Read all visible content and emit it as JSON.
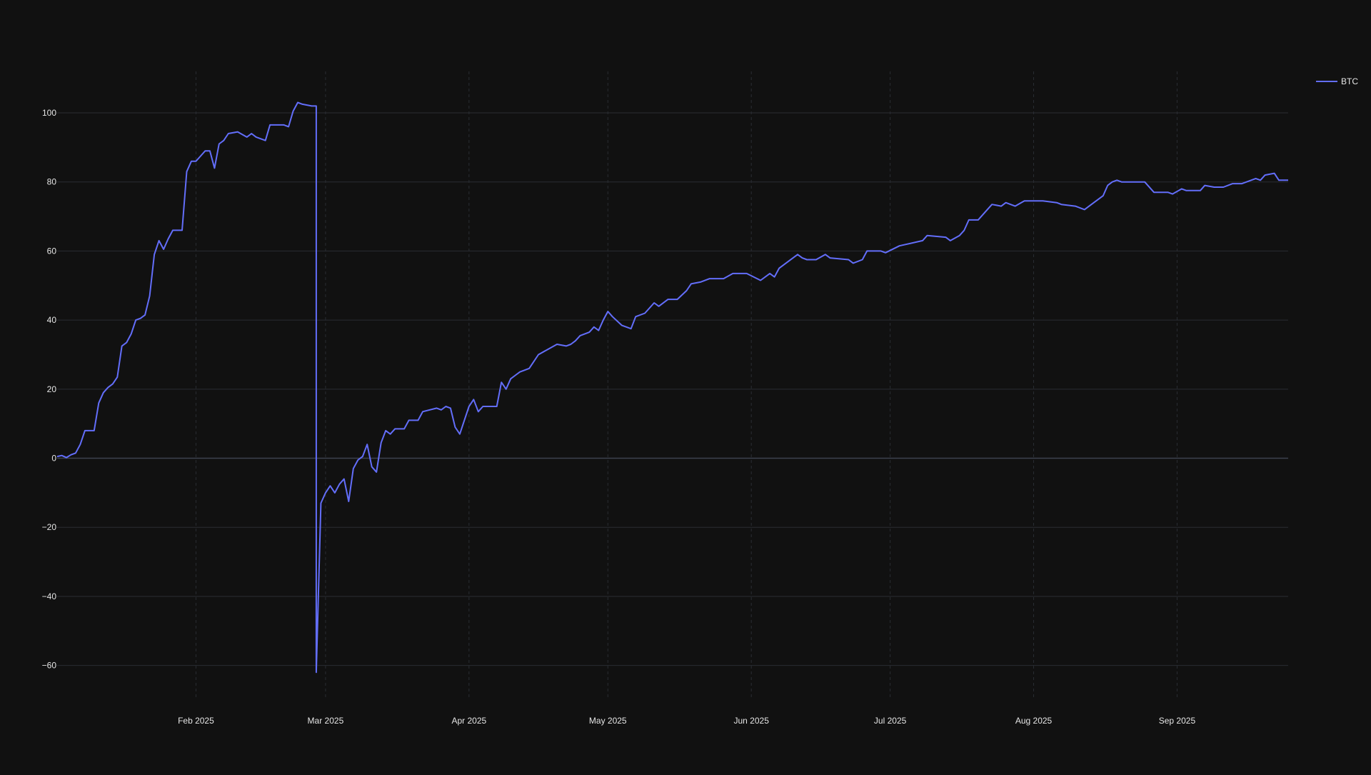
{
  "chart_data": {
    "type": "line",
    "title": "",
    "xlabel": "",
    "ylabel": "",
    "theme": {
      "background": "#111111",
      "grid_color": "#2a2d33",
      "zero_line_color": "#3c4250",
      "tick_color": "#e6e6e6"
    },
    "x_axis": {
      "type": "date",
      "range": [
        "2025-01-02",
        "2025-09-25"
      ],
      "grid": true,
      "grid_style": "dashed",
      "ticks": [
        {
          "date": "2025-02-01",
          "label": "Feb 2025"
        },
        {
          "date": "2025-03-01",
          "label": "Mar 2025"
        },
        {
          "date": "2025-04-01",
          "label": "Apr 2025"
        },
        {
          "date": "2025-05-01",
          "label": "May 2025"
        },
        {
          "date": "2025-06-01",
          "label": "Jun 2025"
        },
        {
          "date": "2025-07-01",
          "label": "Jul 2025"
        },
        {
          "date": "2025-08-01",
          "label": "Aug 2025"
        },
        {
          "date": "2025-09-01",
          "label": "Sep 2025"
        }
      ]
    },
    "y_axis": {
      "range": [
        -70,
        112
      ],
      "grid": true,
      "ticks": [
        {
          "value": 100,
          "label": "100"
        },
        {
          "value": 80,
          "label": "80"
        },
        {
          "value": 60,
          "label": "60"
        },
        {
          "value": 40,
          "label": "40"
        },
        {
          "value": 20,
          "label": "20"
        },
        {
          "value": 0,
          "label": "0"
        },
        {
          "value": -20,
          "label": "−20"
        },
        {
          "value": -40,
          "label": "−40"
        },
        {
          "value": -60,
          "label": "−60"
        }
      ]
    },
    "legend": {
      "position": "top-right"
    },
    "series": [
      {
        "name": "BTC",
        "color": "#636efa",
        "points": [
          [
            "2025-01-02",
            0.5
          ],
          [
            "2025-01-03",
            0.8
          ],
          [
            "2025-01-04",
            0.2
          ],
          [
            "2025-01-05",
            1.0
          ],
          [
            "2025-01-06",
            1.5
          ],
          [
            "2025-01-07",
            4.0
          ],
          [
            "2025-01-08",
            8.0
          ],
          [
            "2025-01-10",
            8.0
          ],
          [
            "2025-01-11",
            16.0
          ],
          [
            "2025-01-12",
            19.0
          ],
          [
            "2025-01-13",
            20.5
          ],
          [
            "2025-01-14",
            21.5
          ],
          [
            "2025-01-15",
            23.5
          ],
          [
            "2025-01-16",
            32.5
          ],
          [
            "2025-01-17",
            33.5
          ],
          [
            "2025-01-18",
            36.0
          ],
          [
            "2025-01-19",
            40.0
          ],
          [
            "2025-01-20",
            40.5
          ],
          [
            "2025-01-21",
            41.5
          ],
          [
            "2025-01-22",
            47.0
          ],
          [
            "2025-01-23",
            59.0
          ],
          [
            "2025-01-24",
            63.0
          ],
          [
            "2025-01-25",
            60.5
          ],
          [
            "2025-01-26",
            63.5
          ],
          [
            "2025-01-27",
            66.0
          ],
          [
            "2025-01-29",
            66.0
          ],
          [
            "2025-01-30",
            83.0
          ],
          [
            "2025-01-31",
            86.0
          ],
          [
            "2025-02-01",
            86.0
          ],
          [
            "2025-02-02",
            87.5
          ],
          [
            "2025-02-03",
            89.0
          ],
          [
            "2025-02-04",
            89.0
          ],
          [
            "2025-02-05",
            84.0
          ],
          [
            "2025-02-06",
            91.0
          ],
          [
            "2025-02-07",
            92.0
          ],
          [
            "2025-02-08",
            94.0
          ],
          [
            "2025-02-10",
            94.5
          ],
          [
            "2025-02-12",
            93.0
          ],
          [
            "2025-02-13",
            94.0
          ],
          [
            "2025-02-14",
            93.0
          ],
          [
            "2025-02-16",
            92.0
          ],
          [
            "2025-02-17",
            96.5
          ],
          [
            "2025-02-20",
            96.5
          ],
          [
            "2025-02-21",
            96.0
          ],
          [
            "2025-02-22",
            100.5
          ],
          [
            "2025-02-23",
            103.0
          ],
          [
            "2025-02-24",
            102.5
          ],
          [
            "2025-02-26",
            102.0
          ],
          [
            "2025-02-27",
            102.0
          ],
          [
            "2025-02-27",
            -62.0
          ],
          [
            "2025-02-28",
            -13.0
          ],
          [
            "2025-03-01",
            -10.0
          ],
          [
            "2025-03-02",
            -8.0
          ],
          [
            "2025-03-03",
            -10.0
          ],
          [
            "2025-03-04",
            -7.5
          ],
          [
            "2025-03-05",
            -6.0
          ],
          [
            "2025-03-06",
            -12.5
          ],
          [
            "2025-03-07",
            -3.0
          ],
          [
            "2025-03-08",
            -0.5
          ],
          [
            "2025-03-09",
            0.5
          ],
          [
            "2025-03-10",
            4.0
          ],
          [
            "2025-03-11",
            -2.5
          ],
          [
            "2025-03-12",
            -4.0
          ],
          [
            "2025-03-13",
            4.5
          ],
          [
            "2025-03-14",
            8.0
          ],
          [
            "2025-03-15",
            7.0
          ],
          [
            "2025-03-16",
            8.5
          ],
          [
            "2025-03-18",
            8.5
          ],
          [
            "2025-03-19",
            11.0
          ],
          [
            "2025-03-21",
            11.0
          ],
          [
            "2025-03-22",
            13.5
          ],
          [
            "2025-03-25",
            14.5
          ],
          [
            "2025-03-26",
            14.0
          ],
          [
            "2025-03-27",
            15.0
          ],
          [
            "2025-03-28",
            14.5
          ],
          [
            "2025-03-29",
            9.0
          ],
          [
            "2025-03-30",
            7.0
          ],
          [
            "2025-03-31",
            11.0
          ],
          [
            "2025-04-01",
            15.0
          ],
          [
            "2025-04-02",
            17.0
          ],
          [
            "2025-04-03",
            13.5
          ],
          [
            "2025-04-04",
            15.0
          ],
          [
            "2025-04-07",
            15.0
          ],
          [
            "2025-04-08",
            22.0
          ],
          [
            "2025-04-09",
            20.0
          ],
          [
            "2025-04-10",
            23.0
          ],
          [
            "2025-04-11",
            24.0
          ],
          [
            "2025-04-12",
            25.0
          ],
          [
            "2025-04-14",
            26.0
          ],
          [
            "2025-04-16",
            30.0
          ],
          [
            "2025-04-18",
            31.5
          ],
          [
            "2025-04-20",
            33.0
          ],
          [
            "2025-04-22",
            32.5
          ],
          [
            "2025-04-23",
            33.0
          ],
          [
            "2025-04-24",
            34.0
          ],
          [
            "2025-04-25",
            35.5
          ],
          [
            "2025-04-27",
            36.5
          ],
          [
            "2025-04-28",
            38.0
          ],
          [
            "2025-04-29",
            37.0
          ],
          [
            "2025-04-30",
            40.0
          ],
          [
            "2025-05-01",
            42.5
          ],
          [
            "2025-05-02",
            41.0
          ],
          [
            "2025-05-04",
            38.5
          ],
          [
            "2025-05-06",
            37.5
          ],
          [
            "2025-05-07",
            41.0
          ],
          [
            "2025-05-09",
            42.0
          ],
          [
            "2025-05-11",
            45.0
          ],
          [
            "2025-05-12",
            44.0
          ],
          [
            "2025-05-14",
            46.0
          ],
          [
            "2025-05-16",
            46.0
          ],
          [
            "2025-05-18",
            48.5
          ],
          [
            "2025-05-19",
            50.5
          ],
          [
            "2025-05-21",
            51.0
          ],
          [
            "2025-05-23",
            52.0
          ],
          [
            "2025-05-26",
            52.0
          ],
          [
            "2025-05-28",
            53.5
          ],
          [
            "2025-05-31",
            53.5
          ],
          [
            "2025-06-03",
            51.5
          ],
          [
            "2025-06-05",
            53.5
          ],
          [
            "2025-06-06",
            52.5
          ],
          [
            "2025-06-07",
            55.0
          ],
          [
            "2025-06-09",
            57.0
          ],
          [
            "2025-06-11",
            59.0
          ],
          [
            "2025-06-12",
            58.0
          ],
          [
            "2025-06-13",
            57.5
          ],
          [
            "2025-06-15",
            57.5
          ],
          [
            "2025-06-17",
            59.0
          ],
          [
            "2025-06-18",
            58.0
          ],
          [
            "2025-06-22",
            57.5
          ],
          [
            "2025-06-23",
            56.5
          ],
          [
            "2025-06-25",
            57.5
          ],
          [
            "2025-06-26",
            60.0
          ],
          [
            "2025-06-29",
            60.0
          ],
          [
            "2025-06-30",
            59.5
          ],
          [
            "2025-07-03",
            61.5
          ],
          [
            "2025-07-08",
            63.0
          ],
          [
            "2025-07-09",
            64.5
          ],
          [
            "2025-07-13",
            64.0
          ],
          [
            "2025-07-14",
            63.0
          ],
          [
            "2025-07-16",
            64.5
          ],
          [
            "2025-07-17",
            66.0
          ],
          [
            "2025-07-18",
            69.0
          ],
          [
            "2025-07-20",
            69.0
          ],
          [
            "2025-07-22",
            72.0
          ],
          [
            "2025-07-23",
            73.5
          ],
          [
            "2025-07-25",
            73.0
          ],
          [
            "2025-07-26",
            74.0
          ],
          [
            "2025-07-28",
            73.0
          ],
          [
            "2025-07-30",
            74.5
          ],
          [
            "2025-08-03",
            74.5
          ],
          [
            "2025-08-06",
            74.0
          ],
          [
            "2025-08-07",
            73.5
          ],
          [
            "2025-08-10",
            73.0
          ],
          [
            "2025-08-12",
            72.0
          ],
          [
            "2025-08-14",
            74.0
          ],
          [
            "2025-08-16",
            76.0
          ],
          [
            "2025-08-17",
            79.0
          ],
          [
            "2025-08-18",
            80.0
          ],
          [
            "2025-08-19",
            80.5
          ],
          [
            "2025-08-20",
            80.0
          ],
          [
            "2025-08-25",
            80.0
          ],
          [
            "2025-08-27",
            77.0
          ],
          [
            "2025-08-30",
            77.0
          ],
          [
            "2025-08-31",
            76.5
          ],
          [
            "2025-09-02",
            78.0
          ],
          [
            "2025-09-03",
            77.5
          ],
          [
            "2025-09-06",
            77.5
          ],
          [
            "2025-09-07",
            79.0
          ],
          [
            "2025-09-09",
            78.5
          ],
          [
            "2025-09-11",
            78.5
          ],
          [
            "2025-09-13",
            79.5
          ],
          [
            "2025-09-15",
            79.5
          ],
          [
            "2025-09-17",
            80.5
          ],
          [
            "2025-09-18",
            81.0
          ],
          [
            "2025-09-19",
            80.5
          ],
          [
            "2025-09-20",
            82.0
          ],
          [
            "2025-09-22",
            82.5
          ],
          [
            "2025-09-23",
            80.5
          ],
          [
            "2025-09-25",
            80.5
          ]
        ]
      }
    ]
  }
}
